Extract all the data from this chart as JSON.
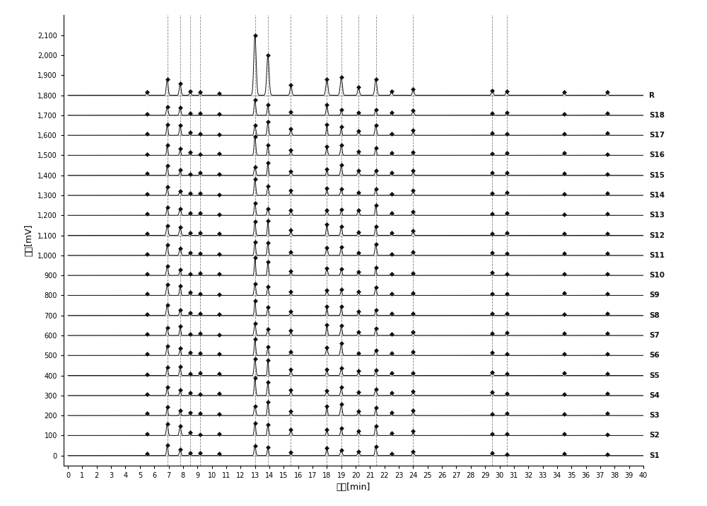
{
  "xlabel": "时间[min]",
  "ylabel": "信号[mV]",
  "xlim": [
    -0.3,
    40
  ],
  "ylim": [
    -50,
    2200
  ],
  "yticks": [
    0,
    100,
    200,
    300,
    400,
    500,
    600,
    700,
    800,
    900,
    1000,
    1100,
    1200,
    1300,
    1400,
    1500,
    1600,
    1700,
    1800,
    1900,
    2000,
    2100
  ],
  "xticks": [
    0,
    1,
    2,
    3,
    4,
    5,
    6,
    7,
    8,
    9,
    10,
    11,
    12,
    13,
    14,
    15,
    16,
    17,
    18,
    19,
    20,
    21,
    22,
    23,
    24,
    25,
    26,
    27,
    28,
    29,
    30,
    31,
    32,
    33,
    34,
    35,
    36,
    37,
    38,
    39,
    40
  ],
  "series_labels": [
    "S1",
    "S2",
    "S3",
    "S4",
    "S5",
    "S6",
    "S7",
    "S8",
    "S9",
    "S10",
    "S11",
    "S12",
    "S13",
    "S14",
    "S15",
    "S16",
    "S17",
    "S18",
    "R"
  ],
  "series_offsets": [
    0,
    100,
    200,
    300,
    400,
    500,
    600,
    700,
    800,
    900,
    1000,
    1100,
    1200,
    1300,
    1400,
    1500,
    1600,
    1700,
    1800
  ],
  "dashed_lines": [
    6.9,
    7.8,
    8.5,
    9.2,
    13.0,
    13.9,
    15.5,
    18.0,
    19.0,
    20.2,
    21.4,
    24.0,
    29.5,
    30.5
  ],
  "peak_positions": [
    5.5,
    6.9,
    7.8,
    8.5,
    9.2,
    10.5,
    13.0,
    13.9,
    15.5,
    18.0,
    19.0,
    20.2,
    21.4,
    22.5,
    24.0,
    29.5,
    30.5,
    34.5,
    37.5
  ],
  "background_color": "#ffffff",
  "line_color": "#111111",
  "marker_color": "#111111",
  "dashed_color": "#666666"
}
